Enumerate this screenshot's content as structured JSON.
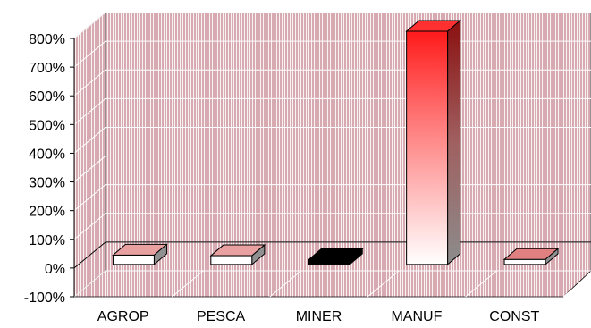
{
  "chart_data": {
    "type": "bar",
    "categories": [
      "AGROP",
      "PESCA",
      "MINER",
      "MANUF",
      "CONST"
    ],
    "values": [
      20,
      18,
      4,
      800,
      5
    ],
    "ylim": [
      -100,
      800
    ],
    "yticks": [
      "-100%",
      "0%",
      "100%",
      "200%",
      "300%",
      "400%",
      "500%",
      "600%",
      "700%",
      "800%"
    ],
    "grid": true,
    "style": "3d-column",
    "colors": {
      "wall": "#d4a5ad",
      "hatch": "#ffffff",
      "bars": [
        "#e8a0a0",
        "#e8a0a0",
        "#000000",
        "#ff2020",
        "#e08080"
      ]
    }
  }
}
